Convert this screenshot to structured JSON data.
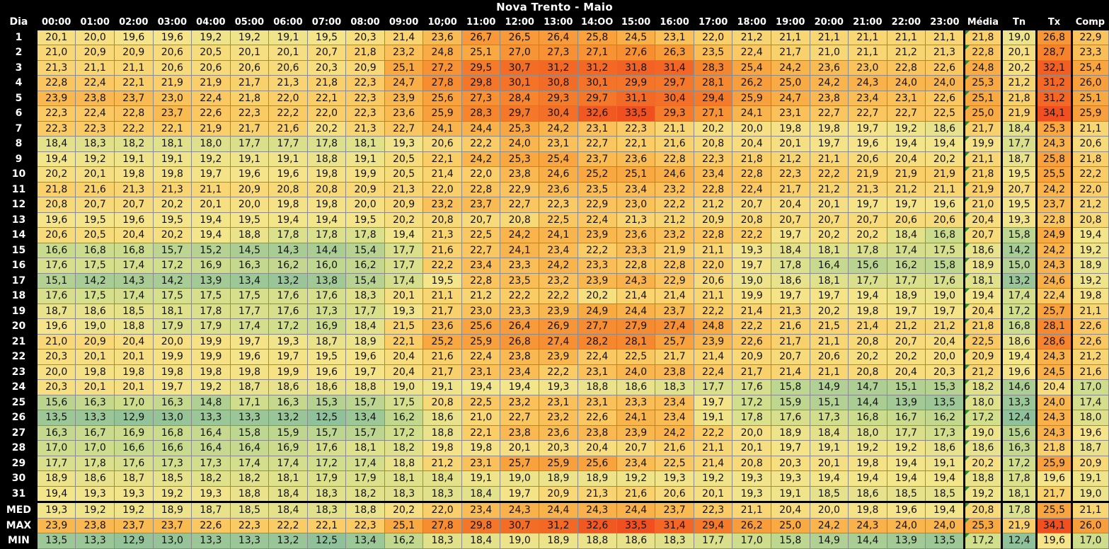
{
  "title": "Nova Trento - Maio",
  "headers": {
    "day": "Dia",
    "hours": [
      "00:00",
      "01:00",
      "02:00",
      "03:00",
      "04:00",
      "05:00",
      "06:00",
      "07:00",
      "08:00",
      "09:00",
      "10;00",
      "11:00",
      "12:00",
      "13:00",
      "14:OO",
      "15:00",
      "16:00",
      "17:00",
      "18:00",
      "19:00",
      "20:00",
      "21:00",
      "22:00",
      "23:00"
    ],
    "stats": [
      "Média",
      "Tn",
      "Tx",
      "Comp"
    ]
  },
  "rows": [
    {
      "label": "1",
      "values": [
        "20,1",
        "20,0",
        "19,6",
        "19,6",
        "19,2",
        "19,2",
        "19,1",
        "19,5",
        "20,3",
        "21,4",
        "23,6",
        "26,7",
        "26,5",
        "26,4",
        "25,8",
        "24,5",
        "23,1",
        "22,0",
        "21,2",
        "21,1",
        "21,1",
        "21,1",
        "21,1",
        "21,1"
      ],
      "stats": [
        "21,8",
        "19,0",
        "26,8",
        "22,9"
      ]
    },
    {
      "label": "2",
      "values": [
        "21,0",
        "20,9",
        "20,9",
        "20,6",
        "20,5",
        "20,1",
        "20,1",
        "20,7",
        "21,8",
        "23,2",
        "24,8",
        "25,1",
        "27,0",
        "27,3",
        "27,1",
        "27,6",
        "26,3",
        "23,5",
        "22,4",
        "21,7",
        "21,0",
        "21,1",
        "21,2",
        "21,3"
      ],
      "stats": [
        "22,8",
        "20,1",
        "28,7",
        "23,3"
      ]
    },
    {
      "label": "3",
      "values": [
        "21,3",
        "21,1",
        "21,1",
        "20,6",
        "20,6",
        "20,6",
        "20,6",
        "20,3",
        "20,9",
        "25,1",
        "27,2",
        "29,5",
        "30,7",
        "31,2",
        "31,2",
        "31,8",
        "31,4",
        "28,3",
        "25,4",
        "24,2",
        "23,6",
        "23,0",
        "22,8",
        "22,6"
      ],
      "stats": [
        "24,8",
        "20,2",
        "32,1",
        "25,4"
      ]
    },
    {
      "label": "4",
      "values": [
        "22,8",
        "22,4",
        "22,1",
        "21,9",
        "21,9",
        "21,7",
        "21,3",
        "21,8",
        "22,3",
        "24,7",
        "27,8",
        "29,8",
        "30,1",
        "30,8",
        "30,1",
        "29,9",
        "29,7",
        "28,1",
        "26,2",
        "25,0",
        "24,2",
        "24,3",
        "24,0",
        "24,0"
      ],
      "stats": [
        "25,3",
        "21,2",
        "31,2",
        "26,0"
      ]
    },
    {
      "label": "5",
      "values": [
        "23,9",
        "23,8",
        "23,7",
        "23,0",
        "22,4",
        "21,8",
        "22,0",
        "22,1",
        "22,3",
        "23,9",
        "25,6",
        "27,3",
        "28,4",
        "29,3",
        "29,7",
        "31,1",
        "30,4",
        "29,4",
        "25,9",
        "24,7",
        "23,8",
        "23,4",
        "23,1",
        "22,6"
      ],
      "stats": [
        "25,1",
        "21,8",
        "31,2",
        "25,1"
      ]
    },
    {
      "label": "6",
      "values": [
        "22,3",
        "22,4",
        "22,8",
        "23,7",
        "22,6",
        "22,3",
        "22,2",
        "22,0",
        "22,3",
        "23,6",
        "25,9",
        "28,3",
        "29,7",
        "30,4",
        "32,6",
        "33,5",
        "29,3",
        "27,1",
        "24,1",
        "23,1",
        "22,7",
        "22,7",
        "22,7",
        "22,5"
      ],
      "stats": [
        "25,0",
        "21,9",
        "34,1",
        "25,9"
      ]
    },
    {
      "label": "7",
      "values": [
        "22,3",
        "22,3",
        "22,2",
        "22,1",
        "21,9",
        "21,7",
        "21,6",
        "20,2",
        "21,3",
        "22,7",
        "24,1",
        "24,4",
        "25,3",
        "24,2",
        "23,1",
        "22,3",
        "21,1",
        "20,2",
        "20,0",
        "19,8",
        "19,8",
        "19,7",
        "19,2",
        "18,6"
      ],
      "stats": [
        "21,7",
        "18,4",
        "25,3",
        "21,1"
      ]
    },
    {
      "label": "8",
      "values": [
        "18,4",
        "18,3",
        "18,2",
        "18,1",
        "18,0",
        "17,7",
        "17,7",
        "17,8",
        "18,1",
        "19,3",
        "20,6",
        "22,2",
        "24,0",
        "23,1",
        "22,7",
        "22,1",
        "21,6",
        "20,8",
        "20,4",
        "20,1",
        "19,7",
        "19,6",
        "19,4",
        "19,4"
      ],
      "stats": [
        "19,9",
        "17,7",
        "24,3",
        "20,6"
      ]
    },
    {
      "label": "9",
      "values": [
        "19,4",
        "19,2",
        "19,1",
        "19,1",
        "19,2",
        "19,1",
        "19,1",
        "18,8",
        "19,1",
        "20,5",
        "22,1",
        "24,2",
        "25,3",
        "25,4",
        "23,7",
        "23,6",
        "22,8",
        "22,3",
        "21,8",
        "21,2",
        "21,1",
        "20,6",
        "20,4",
        "20,2"
      ],
      "stats": [
        "21,1",
        "18,7",
        "25,8",
        "21,8"
      ]
    },
    {
      "label": "10",
      "values": [
        "20,2",
        "20,1",
        "19,8",
        "19,8",
        "19,7",
        "19,6",
        "19,6",
        "19,8",
        "19,9",
        "20,5",
        "21,4",
        "22,0",
        "23,8",
        "24,6",
        "25,2",
        "25,1",
        "24,6",
        "23,4",
        "22,8",
        "22,3",
        "22,2",
        "21,9",
        "21,9",
        "21,9"
      ],
      "stats": [
        "21,8",
        "19,5",
        "25,5",
        "22,2"
      ]
    },
    {
      "label": "11",
      "values": [
        "21,8",
        "21,6",
        "21,3",
        "21,3",
        "21,1",
        "20,9",
        "20,8",
        "20,8",
        "20,9",
        "21,3",
        "22,0",
        "22,8",
        "22,9",
        "23,6",
        "23,5",
        "23,4",
        "23,2",
        "22,8",
        "22,4",
        "21,7",
        "21,2",
        "21,3",
        "21,2",
        "21,1"
      ],
      "stats": [
        "21,9",
        "20,7",
        "24,2",
        "22,0"
      ]
    },
    {
      "label": "12",
      "values": [
        "20,8",
        "20,7",
        "20,7",
        "20,2",
        "20,1",
        "20,0",
        "19,8",
        "19,8",
        "20,0",
        "20,9",
        "23,2",
        "23,7",
        "22,7",
        "22,3",
        "22,9",
        "23,0",
        "22,2",
        "21,2",
        "20,7",
        "20,4",
        "20,1",
        "19,7",
        "19,7",
        "19,6"
      ],
      "stats": [
        "21,0",
        "19,5",
        "23,7",
        "21,2"
      ]
    },
    {
      "label": "13",
      "values": [
        "19,6",
        "19,5",
        "19,6",
        "19,5",
        "19,4",
        "19,5",
        "19,4",
        "19,4",
        "19,5",
        "20,2",
        "20,8",
        "20,7",
        "20,8",
        "22,5",
        "22,4",
        "21,3",
        "21,2",
        "20,9",
        "20,8",
        "20,7",
        "20,7",
        "20,7",
        "20,6",
        "20,6"
      ],
      "stats": [
        "20,4",
        "19,3",
        "22,8",
        "20,8"
      ]
    },
    {
      "label": "14",
      "values": [
        "20,6",
        "20,5",
        "20,4",
        "20,2",
        "19,4",
        "18,8",
        "17,8",
        "17,8",
        "17,8",
        "19,4",
        "21,3",
        "22,5",
        "24,2",
        "24,1",
        "23,9",
        "23,6",
        "23,2",
        "22,8",
        "22,2",
        "19,7",
        "20,2",
        "20,2",
        "18,4",
        "16,8"
      ],
      "stats": [
        "20,7",
        "15,8",
        "24,9",
        "19,4"
      ]
    },
    {
      "label": "15",
      "values": [
        "16,6",
        "16,8",
        "16,8",
        "15,7",
        "15,2",
        "14,5",
        "14,3",
        "14,4",
        "15,4",
        "17,7",
        "21,6",
        "22,7",
        "24,1",
        "23,4",
        "22,2",
        "23,3",
        "21,9",
        "21,1",
        "19,3",
        "18,4",
        "18,1",
        "17,8",
        "17,4",
        "17,5"
      ],
      "stats": [
        "18,6",
        "14,2",
        "24,2",
        "19,2"
      ]
    },
    {
      "label": "16",
      "values": [
        "17,6",
        "17,5",
        "17,4",
        "17,2",
        "16,9",
        "16,3",
        "16,2",
        "16,0",
        "16,2",
        "17,7",
        "22,2",
        "23,4",
        "23,3",
        "24,2",
        "23,3",
        "22,8",
        "22,8",
        "22,0",
        "19,7",
        "17,8",
        "16,4",
        "15,6",
        "16,2",
        "15,8"
      ],
      "stats": [
        "18,9",
        "15,0",
        "24,3",
        "18,9"
      ]
    },
    {
      "label": "17",
      "values": [
        "15,1",
        "14,2",
        "14,3",
        "14,2",
        "13,9",
        "13,4",
        "13,2",
        "13,8",
        "15,4",
        "17,4",
        "19,5",
        "22,8",
        "23,5",
        "23,2",
        "23,9",
        "24,3",
        "22,9",
        "20,6",
        "19,0",
        "18,6",
        "18,1",
        "17,7",
        "17,7",
        "17,6"
      ],
      "stats": [
        "18,1",
        "13,2",
        "24,6",
        "19,2"
      ]
    },
    {
      "label": "18",
      "values": [
        "17,6",
        "17,5",
        "17,4",
        "17,5",
        "17,5",
        "17,5",
        "17,6",
        "17,6",
        "18,3",
        "20,1",
        "21,1",
        "21,2",
        "22,2",
        "22,2",
        "20,2",
        "21,4",
        "21,4",
        "21,1",
        "19,9",
        "19,7",
        "19,7",
        "19,4",
        "18,9",
        "19,0"
      ],
      "stats": [
        "19,4",
        "17,4",
        "22,4",
        "19,8"
      ]
    },
    {
      "label": "19",
      "values": [
        "18,7",
        "18,6",
        "18,5",
        "18,1",
        "17,8",
        "17,7",
        "17,6",
        "17,3",
        "17,7",
        "19,3",
        "21,7",
        "23,0",
        "23,3",
        "23,9",
        "24,9",
        "24,4",
        "23,7",
        "22,2",
        "21,4",
        "21,3",
        "20,2",
        "19,8",
        "19,7",
        "19,7"
      ],
      "stats": [
        "20,4",
        "17,2",
        "25,7",
        "21,1"
      ]
    },
    {
      "label": "20",
      "values": [
        "19,6",
        "19,0",
        "18,8",
        "17,9",
        "17,9",
        "17,4",
        "17,2",
        "16,9",
        "18,4",
        "21,5",
        "23,6",
        "25,6",
        "26,4",
        "26,9",
        "27,7",
        "27,9",
        "27,4",
        "24,8",
        "22,2",
        "21,6",
        "21,5",
        "21,4",
        "21,2",
        "21,2"
      ],
      "stats": [
        "21,8",
        "16,8",
        "28,1",
        "22,6"
      ]
    },
    {
      "label": "21",
      "values": [
        "21,0",
        "20,9",
        "20,4",
        "20,0",
        "19,9",
        "19,7",
        "19,3",
        "18,7",
        "18,9",
        "22,1",
        "25,2",
        "25,9",
        "26,8",
        "27,4",
        "28,2",
        "28,1",
        "25,7",
        "23,9",
        "22,6",
        "21,7",
        "21,1",
        "20,8",
        "20,7",
        "20,4"
      ],
      "stats": [
        "22,5",
        "18,6",
        "28,6",
        "22,6"
      ]
    },
    {
      "label": "22",
      "values": [
        "20,3",
        "20,1",
        "20,1",
        "19,9",
        "19,9",
        "19,6",
        "19,7",
        "19,5",
        "19,6",
        "20,4",
        "21,6",
        "22,4",
        "23,8",
        "23,9",
        "22,4",
        "22,5",
        "21,7",
        "21,4",
        "20,9",
        "20,7",
        "20,6",
        "20,2",
        "20,2",
        "20,0"
      ],
      "stats": [
        "20,9",
        "19,4",
        "24,3",
        "21,2"
      ]
    },
    {
      "label": "23",
      "values": [
        "20,0",
        "19,8",
        "19,8",
        "19,8",
        "19,8",
        "19,8",
        "19,9",
        "19,6",
        "19,7",
        "20,4",
        "21,7",
        "23,1",
        "23,4",
        "22,2",
        "23,1",
        "24,0",
        "23,8",
        "22,4",
        "21,7",
        "21,4",
        "21,1",
        "20,8",
        "20,4",
        "20,3"
      ],
      "stats": [
        "21,2",
        "19,6",
        "24,5",
        "21,6"
      ]
    },
    {
      "label": "24",
      "values": [
        "20,3",
        "20,1",
        "20,1",
        "19,7",
        "19,2",
        "18,7",
        "18,6",
        "18,6",
        "18,8",
        "19,0",
        "19,1",
        "19,4",
        "19,4",
        "19,3",
        "18,8",
        "18,6",
        "18,3",
        "17,7",
        "17,6",
        "15,8",
        "14,9",
        "14,7",
        "15,1",
        "15,3"
      ],
      "stats": [
        "18,2",
        "14,6",
        "20,4",
        "17,0"
      ]
    },
    {
      "label": "25",
      "values": [
        "15,6",
        "16,3",
        "17,0",
        "16,3",
        "14,8",
        "17,1",
        "16,3",
        "15,3",
        "15,7",
        "17,5",
        "20,8",
        "22,5",
        "23,2",
        "23,1",
        "23,1",
        "23,3",
        "23,4",
        "19,7",
        "17,2",
        "15,9",
        "15,1",
        "14,4",
        "13,9",
        "13,5"
      ],
      "stats": [
        "18,0",
        "13,3",
        "24,0",
        "17,4"
      ]
    },
    {
      "label": "26",
      "values": [
        "13,5",
        "13,3",
        "12,9",
        "13,0",
        "13,3",
        "13,3",
        "13,2",
        "12,5",
        "13,4",
        "16,2",
        "18,6",
        "21,0",
        "22,7",
        "23,2",
        "22,6",
        "24,1",
        "23,4",
        "19,1",
        "17,8",
        "17,6",
        "17,3",
        "16,8",
        "16,7",
        "16,2"
      ],
      "stats": [
        "17,2",
        "12,4",
        "24,3",
        "18,0"
      ]
    },
    {
      "label": "27",
      "values": [
        "16,3",
        "16,7",
        "16,9",
        "16,8",
        "16,4",
        "15,8",
        "15,9",
        "15,7",
        "15,7",
        "17,2",
        "18,8",
        "22,1",
        "23,8",
        "23,6",
        "23,8",
        "23,9",
        "24,2",
        "22,2",
        "20,0",
        "18,9",
        "18,4",
        "18,0",
        "17,7",
        "17,3"
      ],
      "stats": [
        "19,0",
        "15,6",
        "24,3",
        "19,6"
      ]
    },
    {
      "label": "28",
      "values": [
        "17,0",
        "17,0",
        "16,6",
        "16,6",
        "16,4",
        "16,4",
        "16,9",
        "17,6",
        "18,1",
        "18,2",
        "19,8",
        "19,8",
        "20,1",
        "20,3",
        "20,4",
        "20,7",
        "21,6",
        "21,1",
        "20,1",
        "19,7",
        "19,1",
        "19,2",
        "19,2",
        "18,6"
      ],
      "stats": [
        "18,6",
        "16,3",
        "21,8",
        "18,7"
      ]
    },
    {
      "label": "29",
      "values": [
        "17,7",
        "17,8",
        "17,6",
        "17,3",
        "17,3",
        "17,4",
        "17,4",
        "17,2",
        "17,4",
        "18,8",
        "21,2",
        "23,1",
        "25,7",
        "25,9",
        "25,6",
        "23,4",
        "22,5",
        "21,4",
        "20,8",
        "20,3",
        "20,1",
        "19,8",
        "19,4",
        "19,1"
      ],
      "stats": [
        "20,2",
        "17,2",
        "25,9",
        "20,9"
      ]
    },
    {
      "label": "30",
      "values": [
        "18,9",
        "18,6",
        "18,7",
        "18,5",
        "18,2",
        "18,2",
        "18,1",
        "17,9",
        "17,9",
        "18,1",
        "18,4",
        "19,1",
        "19,0",
        "18,9",
        "18,9",
        "19,2",
        "19,3",
        "19,2",
        "19,3",
        "19,3",
        "19,4",
        "19,4",
        "19,4",
        "19,4"
      ],
      "stats": [
        "18,8",
        "17,8",
        "19,6",
        "19,1"
      ]
    },
    {
      "label": "31",
      "values": [
        "19,4",
        "19,3",
        "19,3",
        "19,2",
        "19,3",
        "18,8",
        "18,4",
        "18,3",
        "18,2",
        "18,3",
        "18,3",
        "18,4",
        "19,7",
        "20,9",
        "21,3",
        "21,6",
        "20,6",
        "20,1",
        "19,3",
        "19,1",
        "18,5",
        "18,6",
        "18,5",
        "18,5"
      ],
      "stats": [
        "19,2",
        "18,1",
        "21,7",
        "19,0"
      ]
    }
  ],
  "summary": [
    {
      "label": "MED",
      "values": [
        "19,3",
        "19,2",
        "19,2",
        "18,9",
        "18,7",
        "18,5",
        "18,4",
        "18,3",
        "18,8",
        "20,2",
        "22,0",
        "23,4",
        "24,3",
        "24,4",
        "24,3",
        "24,4",
        "23,7",
        "22,3",
        "21,1",
        "20,4",
        "20,0",
        "19,8",
        "19,6",
        "19,4"
      ],
      "stats": [
        "20,8",
        "17,8",
        "25,5",
        "21,1"
      ]
    },
    {
      "label": "MAX",
      "values": [
        "23,9",
        "23,8",
        "23,7",
        "23,7",
        "22,6",
        "22,3",
        "22,2",
        "22,1",
        "22,3",
        "25,1",
        "27,8",
        "29,8",
        "30,7",
        "31,2",
        "32,6",
        "33,5",
        "31,4",
        "29,4",
        "26,2",
        "25,0",
        "24,2",
        "24,3",
        "24,0",
        "24,0"
      ],
      "stats": [
        "25,3",
        "21,9",
        "34,1",
        "26,0"
      ]
    },
    {
      "label": "MIN",
      "values": [
        "13,5",
        "13,3",
        "12,9",
        "13,0",
        "13,3",
        "13,3",
        "13,2",
        "12,5",
        "13,4",
        "16,2",
        "18,3",
        "18,4",
        "19,0",
        "18,9",
        "18,8",
        "18,6",
        "18,3",
        "17,7",
        "17,0",
        "15,8",
        "14,9",
        "14,4",
        "13,9",
        "13,5"
      ],
      "stats": [
        "17,2",
        "12,4",
        "19,6",
        "17,0"
      ]
    }
  ],
  "colors": {
    "min_value": "#8fc19a",
    "mid_value": "#f5e58a",
    "high_value": "#f9a23f",
    "max_value": "#f0501f",
    "background": "#000000",
    "header_text": "#ffffff"
  }
}
